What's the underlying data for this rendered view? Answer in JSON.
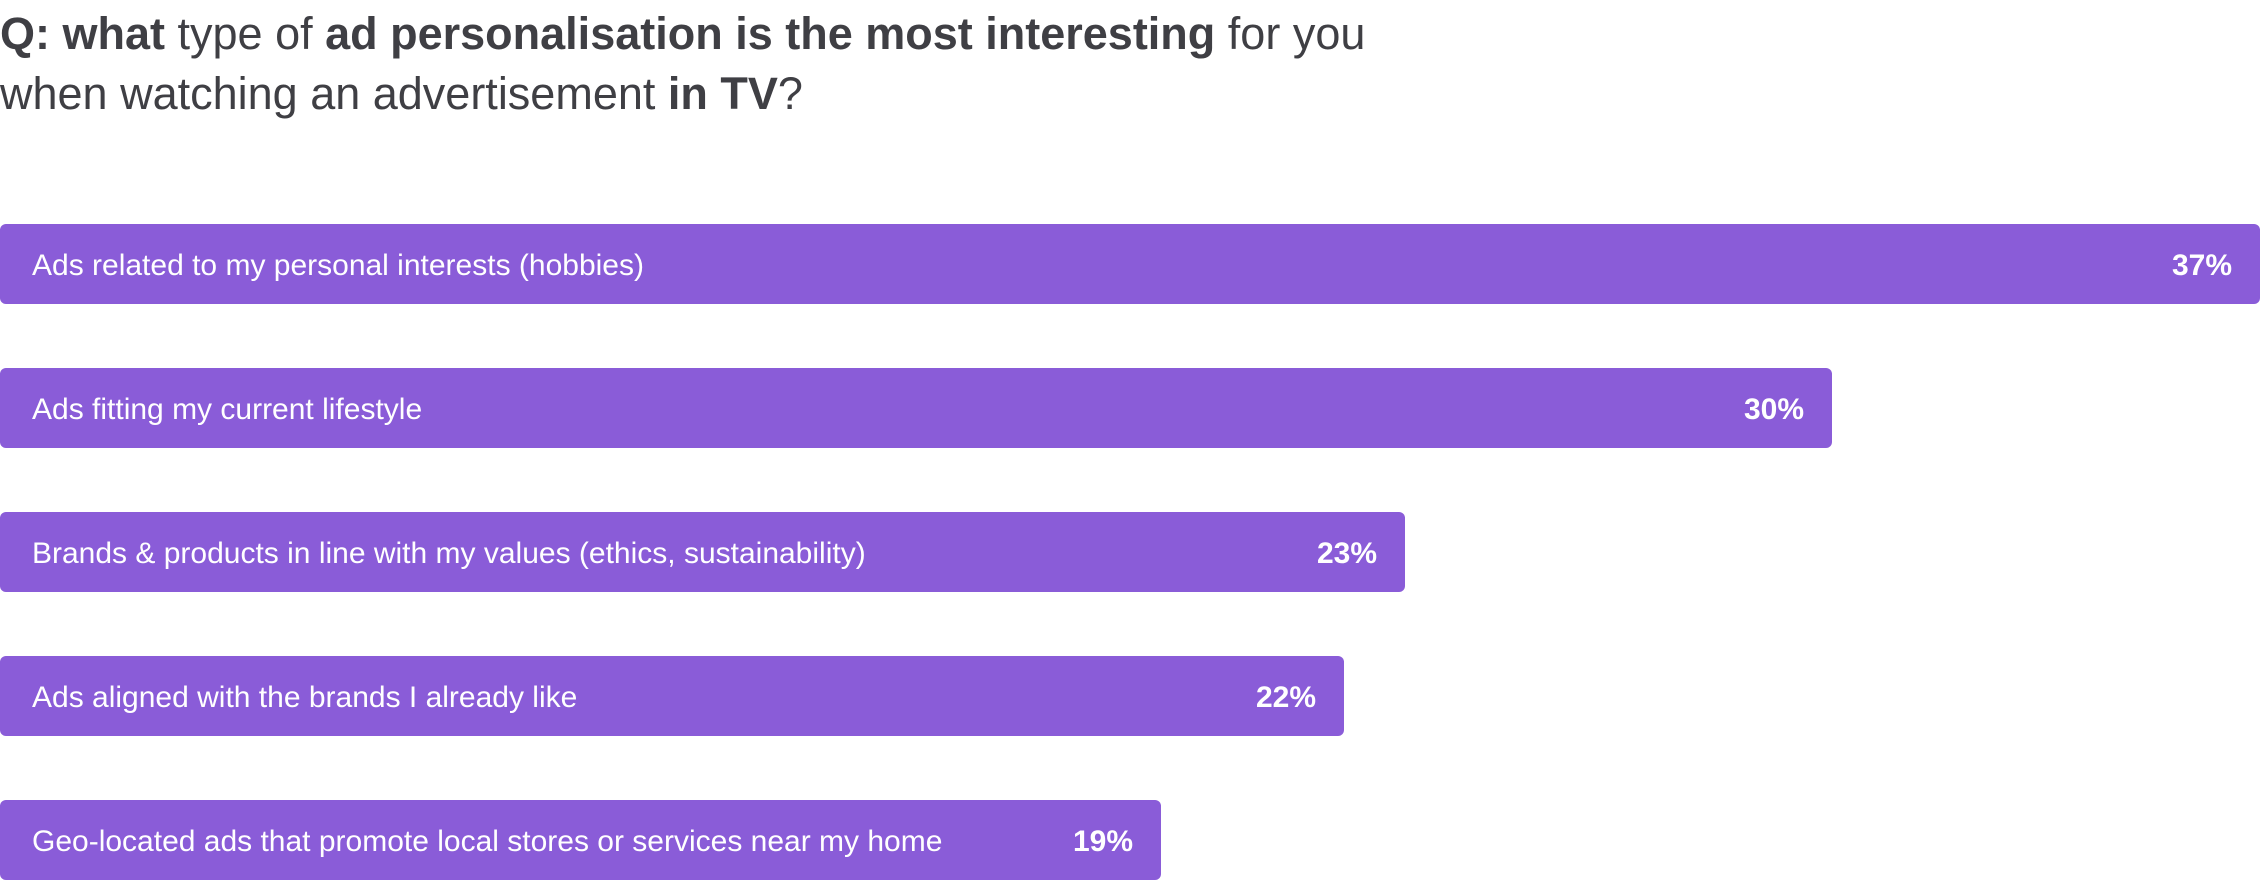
{
  "question": {
    "segments_line1": [
      {
        "text": "Q: ",
        "bold": true
      },
      {
        "text": "what",
        "bold": true
      },
      {
        "text": " type of ",
        "bold": false
      },
      {
        "text": "ad personalisation is the most interesting",
        "bold": true
      },
      {
        "text": " for you",
        "bold": false
      }
    ],
    "segments_line2": [
      {
        "text": "when watching an advertisement ",
        "bold": false
      },
      {
        "text": "in TV",
        "bold": true
      },
      {
        "text": "?",
        "bold": false
      }
    ]
  },
  "colors": {
    "bar": "#8a5cd8",
    "text_on_bar": "#ffffff",
    "title": "#3f3f44"
  },
  "chart_data": {
    "type": "bar",
    "orientation": "horizontal",
    "title": "Q: what type of ad personalisation is the most interesting for you when watching an advertisement in TV?",
    "categories": [
      "Ads related to my personal interests (hobbies)",
      "Ads fitting my current lifestyle",
      "Brands & products in line with my values (ethics, sustainability)",
      "Ads aligned with the brands I already like",
      "Geo-located ads that promote local stores or services near my home"
    ],
    "values": [
      37,
      30,
      23,
      22,
      19
    ],
    "value_labels": [
      "37%",
      "30%",
      "23%",
      "22%",
      "19%"
    ],
    "unit": "%",
    "xlim": [
      0,
      37
    ],
    "grid": false,
    "legend": "none"
  }
}
